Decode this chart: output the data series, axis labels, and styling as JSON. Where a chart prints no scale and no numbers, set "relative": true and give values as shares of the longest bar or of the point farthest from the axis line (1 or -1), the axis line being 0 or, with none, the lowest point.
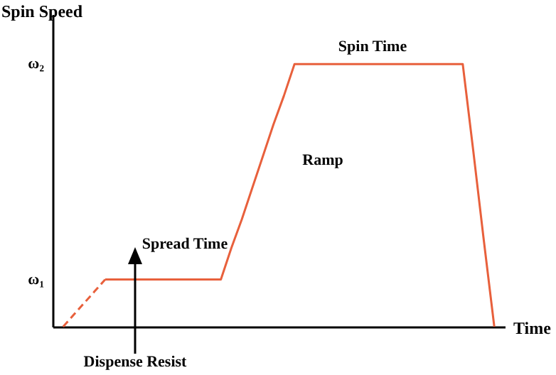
{
  "chart_data": {
    "type": "line",
    "relative": true,
    "ylabel": "Spin Speed",
    "xlabel": "Time",
    "categories": [
      null,
      null,
      null,
      null,
      null,
      null,
      null,
      null,
      null,
      null,
      null,
      null,
      null,
      null,
      null,
      null,
      null,
      null,
      null,
      null,
      null,
      null,
      null,
      null,
      null,
      null,
      null,
      null,
      null,
      null,
      null,
      null,
      null,
      null,
      null,
      null,
      null,
      null,
      null,
      null,
      null,
      null
    ],
    "series": [
      {
        "color": "#e8603c",
        "line_style": "dashed",
        "values": [
          0,
          0.045,
          0.09,
          0.135,
          0.18,
          null,
          null,
          null,
          null,
          null,
          null,
          null,
          null,
          null,
          null,
          null,
          null,
          null,
          null,
          null,
          null,
          null,
          null,
          null,
          null,
          null,
          null,
          null,
          null,
          null,
          null,
          null,
          null,
          null,
          null,
          null,
          null,
          null,
          null,
          null,
          null,
          null
        ]
      },
      {
        "color": "#e8603c",
        "line_style": "solid",
        "values": [
          null,
          null,
          null,
          null,
          0.18,
          0.18,
          0.18,
          0.18,
          0.18,
          0.18,
          0.18,
          0.18,
          0.18,
          0.18,
          0.18,
          0.18,
          0.3,
          0.41,
          0.53,
          0.65,
          0.77,
          0.88,
          1,
          1,
          1,
          1,
          1,
          1,
          1,
          1,
          1,
          1,
          1,
          1,
          1,
          1,
          1,
          1,
          1,
          0.67,
          0.33,
          0
        ]
      }
    ],
    "annotations": [
      "ω₂",
      "ω₁",
      "Spread Time",
      "Ramp",
      "Spin Time",
      "Dispense Resist"
    ]
  }
}
